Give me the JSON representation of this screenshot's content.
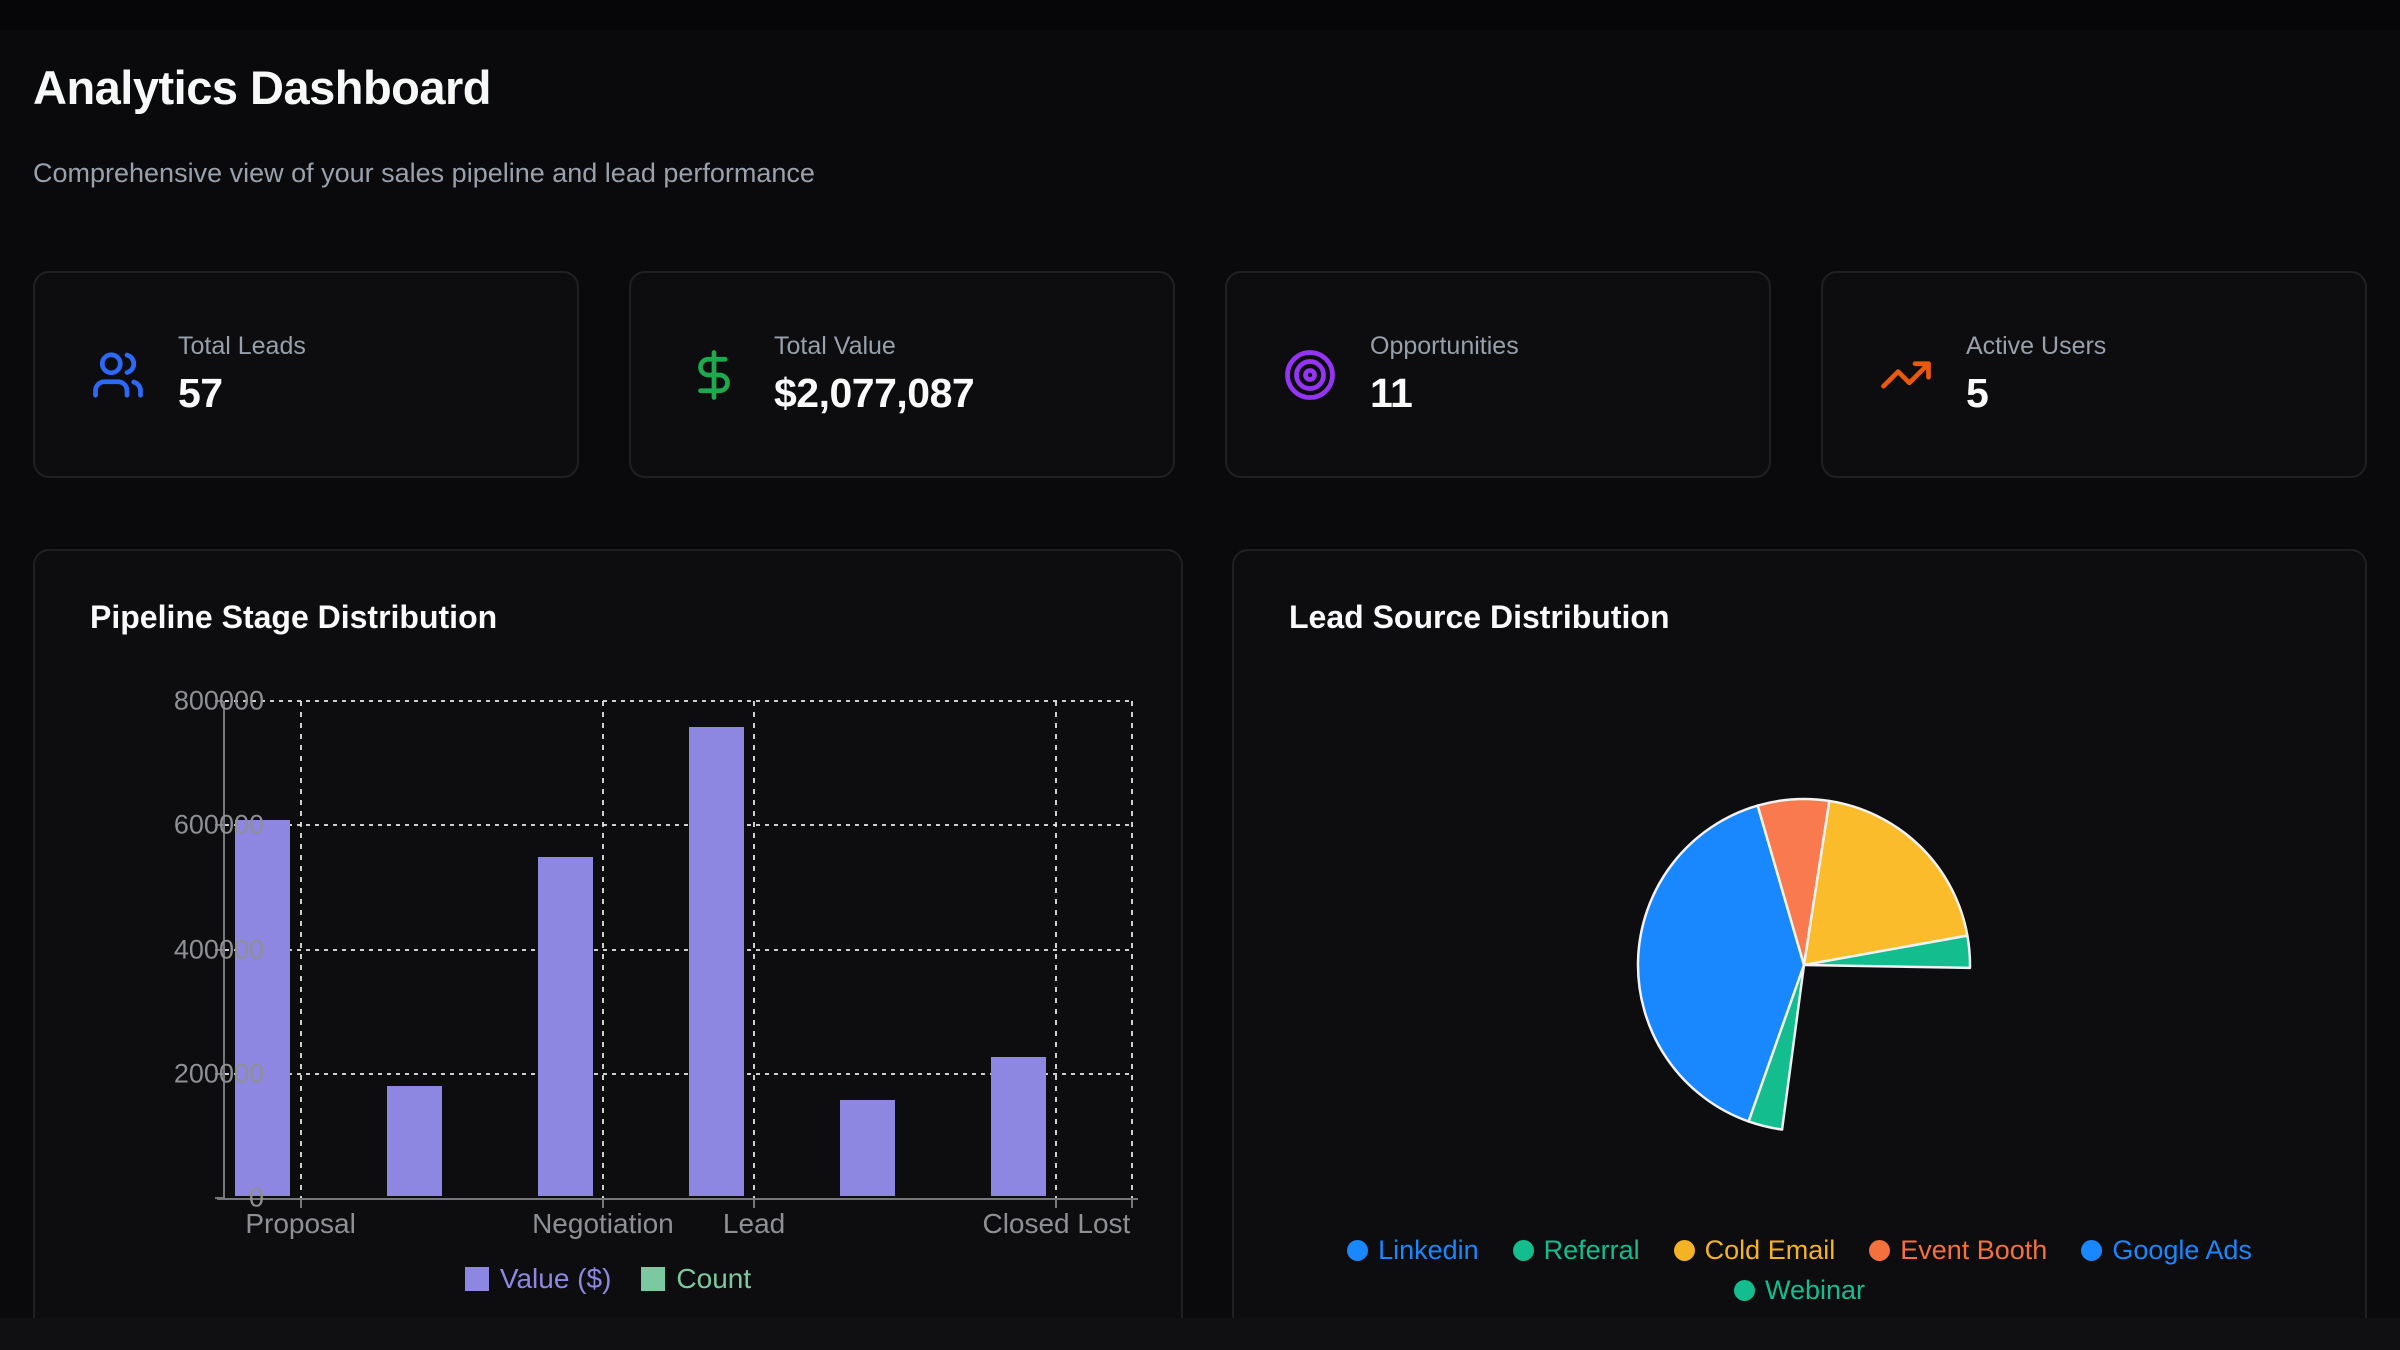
{
  "header": {
    "title": "Analytics Dashboard",
    "subtitle": "Comprehensive view of your sales pipeline and lead performance"
  },
  "stats": [
    {
      "label": "Total Leads",
      "value": "57",
      "icon": "users-icon",
      "icon_color": "#2d68f6"
    },
    {
      "label": "Total Value",
      "value": "$2,077,087",
      "icon": "dollar-sign-icon",
      "icon_color": "#1ea94e"
    },
    {
      "label": "Opportunities",
      "value": "11",
      "icon": "target-icon",
      "icon_color": "#9434f4"
    },
    {
      "label": "Active Users",
      "value": "5",
      "icon": "trending-up-icon",
      "icon_color": "#e9590c"
    }
  ],
  "chart_data": [
    {
      "type": "bar",
      "title": "Pipeline Stage Distribution",
      "categories": [
        "Proposal",
        "",
        "Negotiation",
        "Lead",
        "",
        "Closed Lost"
      ],
      "x_tick_labels_shown": [
        "Proposal",
        "Negotiation",
        "Lead",
        "Closed Lost"
      ],
      "x_tick_shown_category_index": [
        0,
        2,
        3,
        5
      ],
      "series": [
        {
          "name": "Value ($)",
          "color": "#8d87e1",
          "values": [
            605000,
            177000,
            545000,
            755000,
            155000,
            224000
          ]
        },
        {
          "name": "Count",
          "color": "#7bc9a0",
          "values": null,
          "note": "count bars render at ~0 px height on the 0-800000 axis; values not readable"
        }
      ],
      "y_ticks": [
        "800000",
        "600000",
        "400000",
        "200000",
        "0"
      ],
      "ylim": [
        0,
        800000
      ],
      "grid": "dashed",
      "legend_position": "bottom"
    },
    {
      "type": "pie",
      "title": "Lead Source Distribution",
      "legend": [
        {
          "label": "Linkedin",
          "color": "#1987fd"
        },
        {
          "label": "Referral",
          "color": "#13bd8e"
        },
        {
          "label": "Cold Email",
          "color": "#f3b324"
        },
        {
          "label": "Event Booth",
          "color": "#f4703c"
        },
        {
          "label": "Google Ads",
          "color": "#1987fd"
        },
        {
          "label": "Webinar",
          "color": "#13bd8e"
        }
      ],
      "slices": [
        {
          "color": "#1987fd",
          "start_deg": 199.5,
          "sweep_deg": 144.3,
          "share_pct": 40.1
        },
        {
          "color": "#f87a4e",
          "start_deg": 343.8,
          "sweep_deg": 25.0,
          "share_pct": 6.9
        },
        {
          "color": "#fbbc2c",
          "start_deg": 8.8,
          "sweep_deg": 71.0,
          "share_pct": 19.7
        },
        {
          "color": "#13bd8e",
          "start_deg": 79.8,
          "sweep_deg": 11.2,
          "share_pct": 3.1
        },
        {
          "color": "#13bd8e",
          "start_deg": 187.6,
          "sweep_deg": 11.9,
          "share_pct": 3.3
        }
      ],
      "gap": {
        "start_deg": 91.0,
        "end_deg": 187.6,
        "note": "no slice rendered between 3 o'clock and ~6 o'clock; background shows through"
      },
      "angle_reference": "degrees clockwise from 12 o'clock",
      "legend_position": "bottom"
    }
  ]
}
